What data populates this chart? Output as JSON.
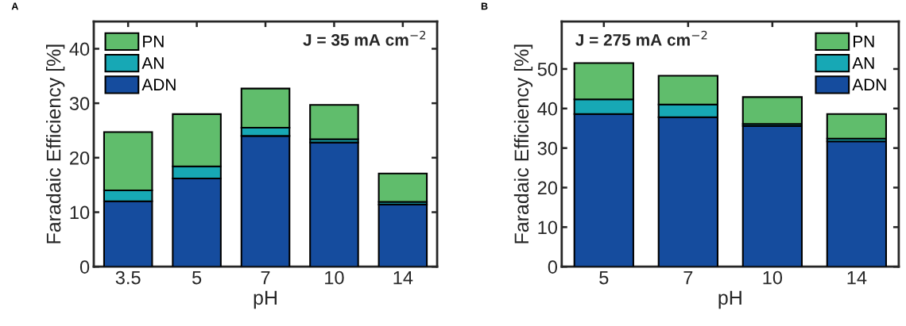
{
  "chart_data": [
    {
      "type": "bar",
      "stacked": true,
      "xlabel": "pH",
      "ylabel": "Faradaic Efficiency [%]",
      "categories": [
        "3.5",
        "5",
        "7",
        "10",
        "14"
      ],
      "ylim": [
        0,
        45
      ],
      "yticks": [
        0,
        10,
        20,
        30,
        40
      ],
      "legend": "top left",
      "grid": false,
      "annotations": [
        "A",
        "J = 35 mA cm$^{−2}$"
      ],
      "series": [
        {
          "name": "ADN",
          "color": "#154c9e",
          "values": [
            12,
            16.2,
            24,
            22.8,
            11.4
          ]
        },
        {
          "name": "AN",
          "color": "#17a8b5",
          "values": [
            2,
            2.2,
            1.5,
            0.6,
            0.5
          ]
        },
        {
          "name": "PN",
          "color": "#60bd6c",
          "values": [
            10.7,
            9.6,
            7.2,
            6.3,
            5.2
          ]
        }
      ]
    },
    {
      "type": "bar",
      "stacked": true,
      "xlabel": "pH",
      "ylabel": "Faradaic Efficiency [%]",
      "categories": [
        "5",
        "7",
        "10",
        "14"
      ],
      "ylim": [
        0,
        62
      ],
      "yticks": [
        0,
        10,
        20,
        30,
        40,
        50
      ],
      "legend": "top right",
      "grid": false,
      "annotations": [
        "B",
        "J = 275 mA cm$^{−2}$"
      ],
      "series": [
        {
          "name": "ADN",
          "color": "#154c9e",
          "values": [
            38.6,
            37.8,
            35.6,
            31.7
          ]
        },
        {
          "name": "AN",
          "color": "#17a8b5",
          "values": [
            3.7,
            3.2,
            0.5,
            0.7
          ]
        },
        {
          "name": "PN",
          "color": "#60bd6c",
          "values": [
            9.2,
            7.3,
            6.8,
            6.2
          ]
        }
      ]
    }
  ]
}
